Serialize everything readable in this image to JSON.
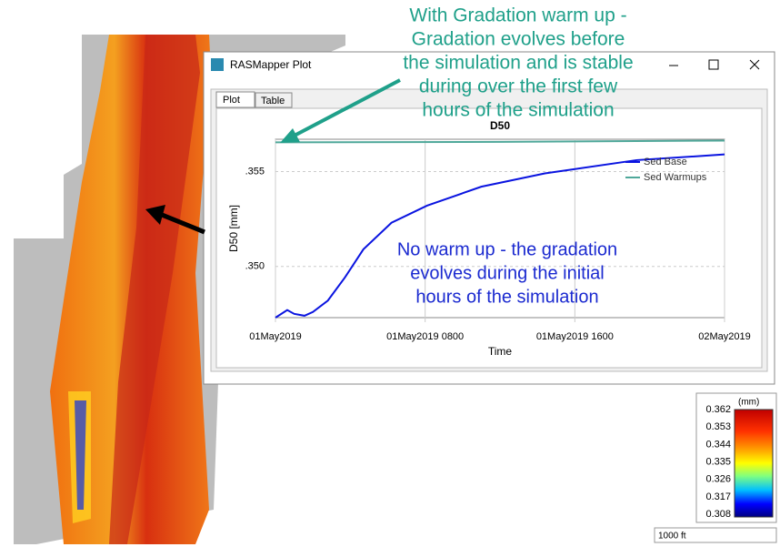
{
  "window": {
    "title": "RASMapper Plot",
    "tabs": [
      "Plot",
      "Table"
    ]
  },
  "annotations": {
    "warmup": [
      "With Gradation warm up -",
      "Gradation evolves before",
      "the simulation and is stable",
      "during over the first few",
      "hours of the simulation"
    ],
    "nowarmup": [
      "No warm up - the gradation",
      "evolves during the initial",
      "hours of the simulation"
    ]
  },
  "colorbar": {
    "unit": "(mm)",
    "labels": [
      "0.362",
      "0.353",
      "0.344",
      "0.335",
      "0.326",
      "0.317",
      "0.308"
    ]
  },
  "scale_bar": "1000 ft",
  "chart_data": {
    "type": "line",
    "title": "D50",
    "x_label": "Time",
    "y_label": "D50 [mm]",
    "xlim": [
      0,
      24
    ],
    "xticks": [
      {
        "value": 0,
        "label": "01May2019"
      },
      {
        "value": 8,
        "label": "01May2019 0800"
      },
      {
        "value": 16,
        "label": "01May2019 1600"
      },
      {
        "value": 24,
        "label": "02May2019"
      }
    ],
    "ylim": [
      0.3473,
      0.3567
    ],
    "yticks": [
      {
        "value": 0.35,
        "label": ".350"
      },
      {
        "value": 0.355,
        "label": ".355"
      }
    ],
    "grid": true,
    "series": [
      {
        "name": "Sed Base",
        "color": "#0a14e0",
        "x": [
          0,
          0.63,
          1,
          1.55,
          2,
          2.8,
          3.7,
          4.7,
          6.2,
          8.1,
          11,
          14.4,
          19.3,
          24
        ],
        "values": [
          0.3473,
          0.3477,
          0.3475,
          0.3474,
          0.3476,
          0.3482,
          0.3494,
          0.3509,
          0.3523,
          0.3532,
          0.3542,
          0.3549,
          0.3556,
          0.3559
        ]
      },
      {
        "name": "Sed Warmups",
        "color": "#4fa89a",
        "x": [
          0,
          12,
          24
        ],
        "values": [
          0.35654,
          0.35656,
          0.35663
        ]
      }
    ]
  }
}
